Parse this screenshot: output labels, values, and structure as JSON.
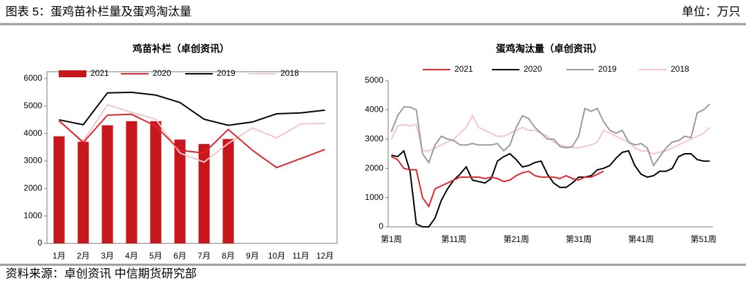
{
  "header": {
    "title": "图表 5：蛋鸡苗补栏量及蛋鸡淘汰量",
    "unit": "单位：万只"
  },
  "footer": {
    "source": "资料来源：卓创资讯 中信期货研究部"
  },
  "chart_data": [
    {
      "type": "bar",
      "title": "鸡苗补栏（卓创资讯）",
      "categories": [
        "1月",
        "2月",
        "3月",
        "4月",
        "5月",
        "6月",
        "7月",
        "8月",
        "9月",
        "10月",
        "11月",
        "12月"
      ],
      "ylim": [
        0,
        6000
      ],
      "yticks": [
        0,
        1000,
        2000,
        3000,
        4000,
        5000,
        6000
      ],
      "series": [
        {
          "name": "2021",
          "type": "bar",
          "color": "#c8161d",
          "values": [
            3900,
            3700,
            4300,
            4450,
            4450,
            3780,
            3620,
            3800,
            null,
            null,
            null,
            null
          ]
        },
        {
          "name": "2020",
          "type": "line",
          "color": "#e0262c",
          "values": [
            4470,
            3670,
            4670,
            4700,
            4270,
            3390,
            3290,
            4150,
            3390,
            2760,
            3090,
            3420
          ]
        },
        {
          "name": "2019",
          "type": "line",
          "color": "#000000",
          "values": [
            4500,
            4320,
            5480,
            5500,
            5400,
            5130,
            4520,
            4300,
            4420,
            4720,
            4750,
            4850
          ]
        },
        {
          "name": "2018",
          "type": "line",
          "color": "#f5c6cb",
          "values": [
            4420,
            3720,
            5050,
            4770,
            4520,
            3290,
            2960,
            3640,
            4200,
            3840,
            4350,
            4370
          ]
        }
      ]
    },
    {
      "type": "line",
      "title": "蛋鸡淘汰量（卓创资讯）",
      "categories": [
        "第1周",
        null,
        null,
        null,
        null,
        null,
        null,
        null,
        null,
        null,
        "第11周",
        null,
        null,
        null,
        null,
        null,
        null,
        null,
        null,
        null,
        "第21周",
        null,
        null,
        null,
        null,
        null,
        null,
        null,
        null,
        null,
        "第31周",
        null,
        null,
        null,
        null,
        null,
        null,
        null,
        null,
        null,
        "第41周",
        null,
        null,
        null,
        null,
        null,
        null,
        null,
        null,
        null,
        "第51周",
        null
      ],
      "ylim": [
        0,
        5000
      ],
      "yticks": [
        0,
        1000,
        2000,
        3000,
        4000,
        5000
      ],
      "series": [
        {
          "name": "2021",
          "type": "line",
          "color": "#e0262c",
          "values": [
            2400,
            2300,
            2000,
            1950,
            1950,
            1000,
            700,
            1300,
            1400,
            1500,
            1600,
            1700,
            1700,
            1700,
            1700,
            1650,
            1700,
            1650,
            1550,
            1600,
            1750,
            1850,
            1900,
            1750,
            1700,
            1700,
            1700,
            1650,
            1750,
            1650,
            1600,
            1700,
            1700,
            1800,
            1900,
            null,
            null,
            null,
            null,
            null,
            null,
            null,
            null,
            null,
            null,
            null,
            null,
            null,
            null,
            null,
            null,
            null
          ]
        },
        {
          "name": "2020",
          "type": "line",
          "color": "#000000",
          "values": [
            2450,
            2400,
            2600,
            1900,
            100,
            0,
            0,
            300,
            900,
            1300,
            1600,
            1800,
            2050,
            1600,
            1550,
            1500,
            1650,
            2250,
            2400,
            2500,
            2300,
            2050,
            2100,
            2200,
            2250,
            1800,
            1500,
            1350,
            1350,
            1500,
            1700,
            1700,
            1750,
            1950,
            2000,
            2100,
            2350,
            2550,
            2600,
            2100,
            1800,
            1700,
            1750,
            1900,
            1900,
            2000,
            2400,
            2500,
            2500,
            2300,
            2250,
            2250
          ]
        },
        {
          "name": "2019",
          "type": "line",
          "color": "#9a9a9a",
          "values": [
            3250,
            3800,
            4100,
            4100,
            4000,
            2500,
            2200,
            2800,
            3100,
            3000,
            2950,
            2800,
            2800,
            2850,
            2800,
            2800,
            2800,
            2850,
            2600,
            2800,
            3400,
            3800,
            3700,
            3400,
            3200,
            3000,
            3000,
            2750,
            2700,
            2750,
            3100,
            4050,
            3950,
            4050,
            3600,
            3300,
            3200,
            3300,
            2900,
            2800,
            2850,
            2700,
            2100,
            2400,
            2700,
            2900,
            2950,
            3100,
            3050,
            3900,
            4000,
            4200
          ]
        },
        {
          "name": "2018",
          "type": "line",
          "color": "#f5c6cb",
          "values": [
            3000,
            3450,
            3500,
            3450,
            3500,
            2600,
            2600,
            2700,
            2800,
            2900,
            3000,
            3200,
            3400,
            3800,
            3400,
            3300,
            3200,
            3100,
            3100,
            3200,
            3300,
            3400,
            3300,
            3300,
            3200,
            3100,
            2900,
            2800,
            2750,
            2700,
            2700,
            2750,
            2800,
            2900,
            3300,
            3200,
            3100,
            3000,
            2900,
            2700,
            2600,
            2600,
            2500,
            2550,
            2600,
            2700,
            2800,
            2900,
            3000,
            3100,
            3200,
            3400
          ]
        }
      ]
    }
  ]
}
